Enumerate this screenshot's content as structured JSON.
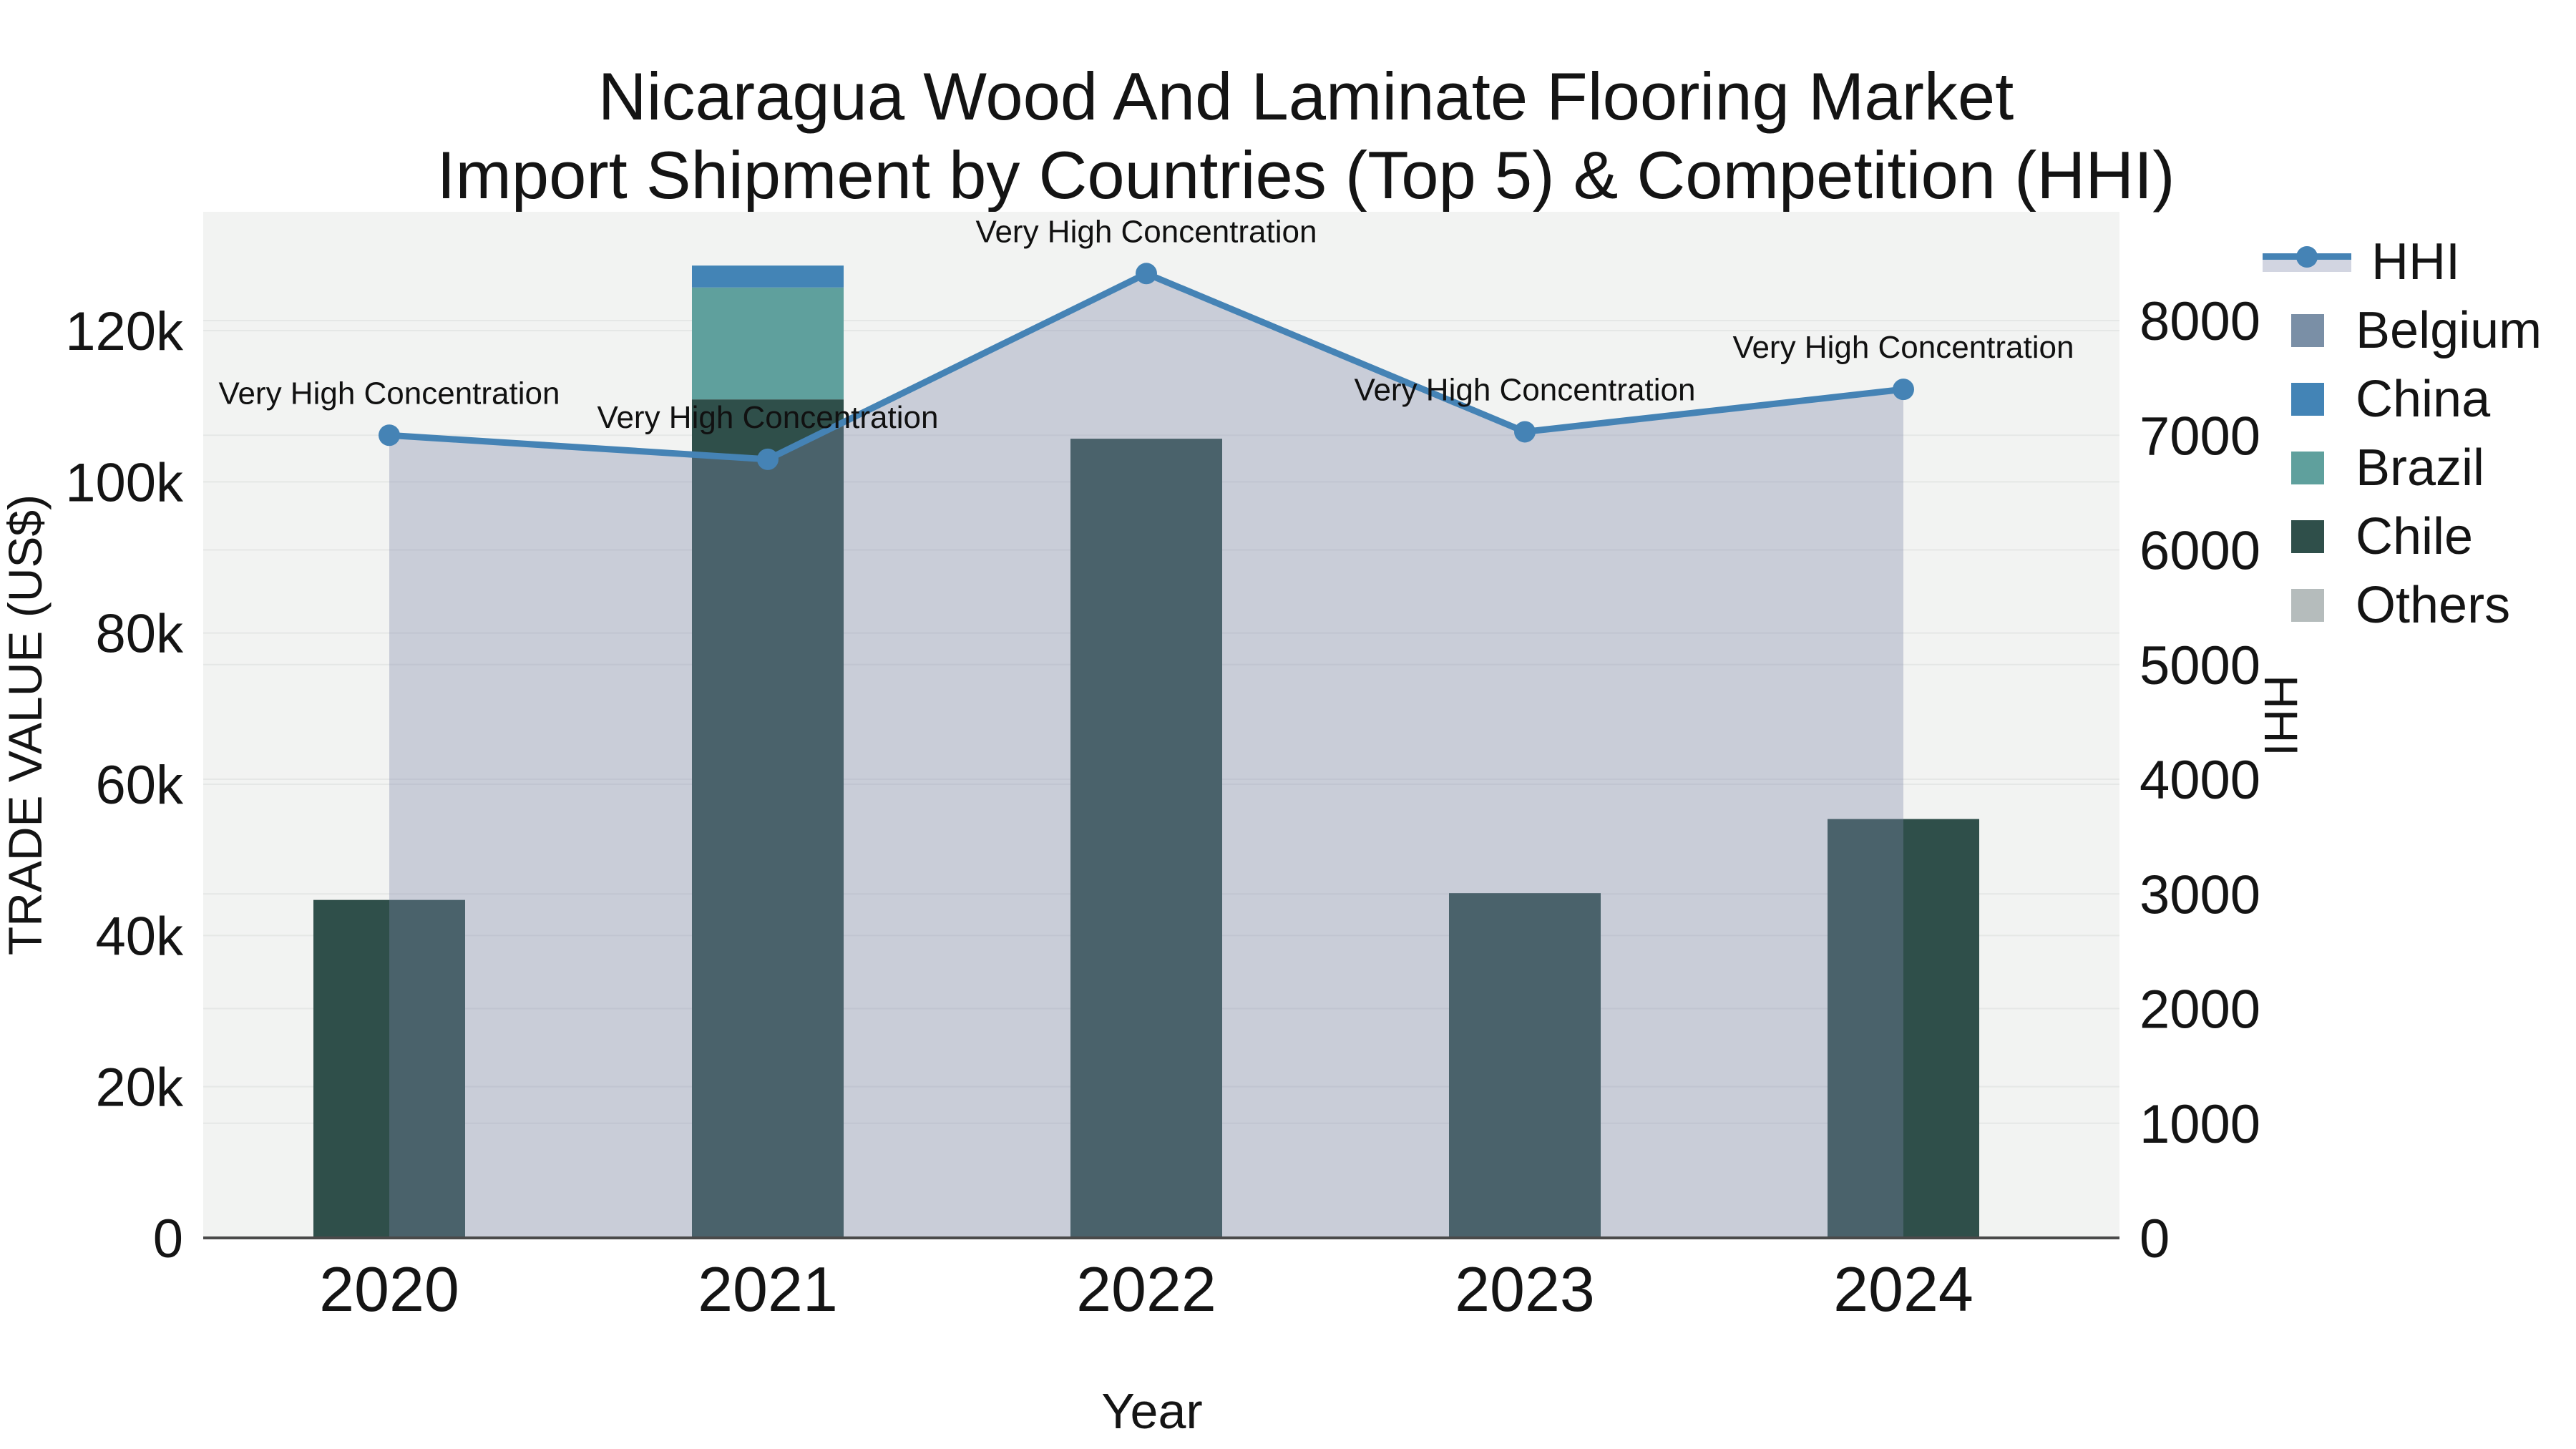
{
  "title": {
    "line1": "Nicaragua Wood And Laminate Flooring Market",
    "line2": "Import Shipment by Countries (Top 5) & Competition (HHI)"
  },
  "chart_data": {
    "type": "bar",
    "subtype": "stacked-bar-with-line",
    "categories": [
      "2020",
      "2021",
      "2022",
      "2023",
      "2024"
    ],
    "bar_series": [
      {
        "name": "Belgium",
        "color": "#7a8fa6",
        "values": [
          0,
          0,
          0,
          0,
          0
        ]
      },
      {
        "name": "China",
        "color": "#4384b6",
        "values": [
          0,
          2900,
          0,
          0,
          0
        ]
      },
      {
        "name": "Brazil",
        "color": "#5fa09d",
        "values": [
          0,
          14800,
          0,
          0,
          0
        ]
      },
      {
        "name": "Chile",
        "color": "#2f4f4a",
        "values": [
          44700,
          110900,
          105700,
          45600,
          55400
        ]
      },
      {
        "name": "Others",
        "color": "#b5bcbc",
        "values": [
          0,
          0,
          0,
          0,
          0
        ]
      }
    ],
    "stack_order_bottom_to_top": [
      "Others",
      "Chile",
      "Brazil",
      "China",
      "Belgium"
    ],
    "line_series": {
      "name": "HHI",
      "color": "#4583b5",
      "area_fill": "rgba(125,135,170,0.35)",
      "values": [
        7000,
        6790,
        8410,
        7030,
        7400
      ]
    },
    "annotations": [
      "Very High Concentration",
      "Very High Concentration",
      "Very High Concentration",
      "Very High Concentration",
      "Very High Concentration"
    ],
    "xlabel": "Year",
    "ylabel_left": "TRADE VALUE (US$)",
    "ylabel_right": "HHI",
    "y_left_ticks": [
      {
        "v": 0,
        "label": "0"
      },
      {
        "v": 20000,
        "label": "20k"
      },
      {
        "v": 40000,
        "label": "40k"
      },
      {
        "v": 60000,
        "label": "60k"
      },
      {
        "v": 80000,
        "label": "80k"
      },
      {
        "v": 100000,
        "label": "100k"
      },
      {
        "v": 120000,
        "label": "120k"
      }
    ],
    "y_right_ticks": [
      {
        "v": 0,
        "label": "0"
      },
      {
        "v": 1000,
        "label": "1000"
      },
      {
        "v": 2000,
        "label": "2000"
      },
      {
        "v": 3000,
        "label": "3000"
      },
      {
        "v": 4000,
        "label": "4000"
      },
      {
        "v": 5000,
        "label": "5000"
      },
      {
        "v": 6000,
        "label": "6000"
      },
      {
        "v": 7000,
        "label": "7000"
      },
      {
        "v": 8000,
        "label": "8000"
      }
    ],
    "ylim_left": [
      0,
      135700
    ],
    "ylim_right": [
      0,
      8950
    ],
    "grid": true,
    "legend_position": "top-right-outside",
    "plot_bg": "#f2f3f2",
    "grid_color": "#e5e7e6",
    "axisline_color": "#4a4a4a",
    "legend": [
      {
        "label": "HHI",
        "type": "line"
      },
      {
        "label": "Belgium",
        "type": "swatch",
        "color": "#7a8fa6"
      },
      {
        "label": "China",
        "type": "swatch",
        "color": "#4384b6"
      },
      {
        "label": "Brazil",
        "type": "swatch",
        "color": "#5fa09d"
      },
      {
        "label": "Chile",
        "type": "swatch",
        "color": "#2f4f4a"
      },
      {
        "label": "Others",
        "type": "swatch",
        "color": "#b5bcbc"
      }
    ]
  }
}
